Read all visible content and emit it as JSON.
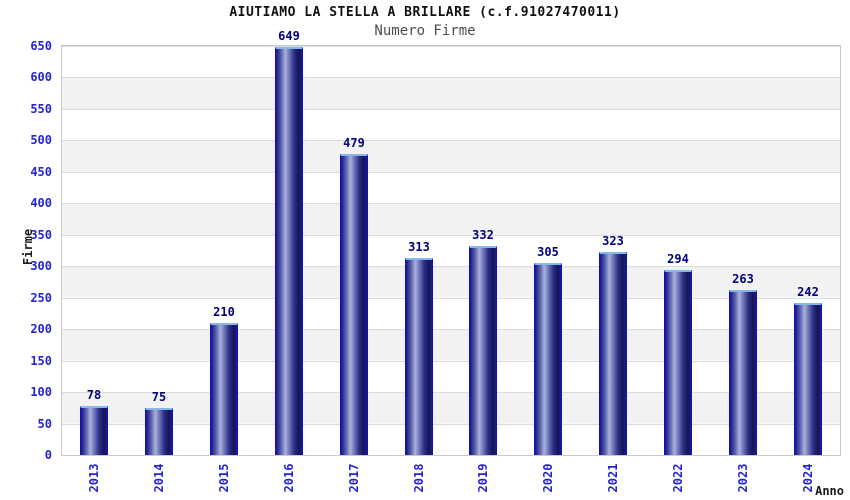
{
  "header": {
    "title": "AIUTIAMO LA STELLA A BRILLARE (c.f.91027470011)",
    "subtitle": "Numero Firme"
  },
  "chart_data": {
    "type": "bar",
    "title": "AIUTIAMO LA STELLA A BRILLARE (c.f.91027470011)",
    "subtitle": "Numero Firme",
    "categories": [
      "2013",
      "2014",
      "2015",
      "2016",
      "2017",
      "2018",
      "2019",
      "2020",
      "2021",
      "2022",
      "2023",
      "2024"
    ],
    "values": [
      78,
      75,
      210,
      649,
      479,
      313,
      332,
      305,
      323,
      294,
      263,
      242
    ],
    "xlabel": "Anno",
    "ylabel": "Firme",
    "ylim": [
      0,
      650
    ],
    "ytick_step": 50,
    "grid": true,
    "legend": false,
    "band_fill": "alternating horizontal bands every 50 units, white and light gray",
    "colors": {
      "tick_label": "#2424d6",
      "value_label": "#000080",
      "title_color": "#111111",
      "subtitle_color": "#4d4d4d",
      "axis_title_color": "#1a1a1a",
      "band_gray": "#f2f2f2",
      "band_white": "#ffffff",
      "gridline": "#dcdcdc",
      "plot_border": "#c9c9c9",
      "bar_outline": "#0d0dc9",
      "bar_cap": "#85b9ea",
      "bar_dark": "#16165e",
      "bar_mid": "#2e2e85",
      "bar_light": "#aab2da"
    }
  }
}
